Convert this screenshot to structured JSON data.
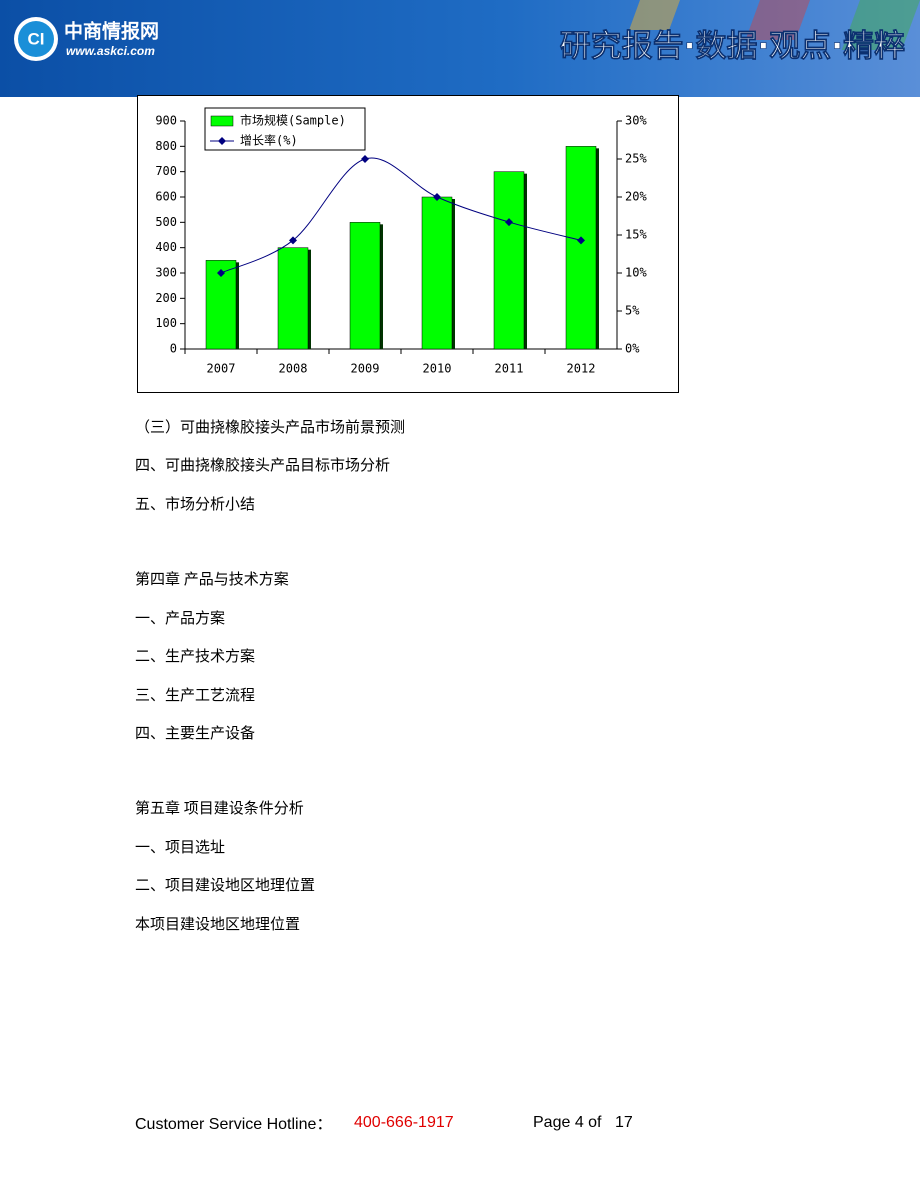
{
  "header": {
    "site_name": "中商情报网",
    "site_url": "www.askci.com",
    "slogan": "研究报告·数据·观点·精粹",
    "logo": "CI"
  },
  "chart_data": {
    "type": "bar",
    "categories": [
      "2007",
      "2008",
      "2009",
      "2010",
      "2011",
      "2012"
    ],
    "series": [
      {
        "name": "市场规模(Sample)",
        "color": "#00ff00",
        "type": "bar",
        "values": [
          350,
          400,
          500,
          600,
          700,
          800
        ]
      },
      {
        "name": "增长率(%)",
        "color": "#000080",
        "type": "line",
        "axis": "y2",
        "values": [
          10,
          14.3,
          25,
          20,
          16.7,
          14.3
        ]
      }
    ],
    "ylim": [
      0,
      900
    ],
    "yticks": [
      0,
      100,
      200,
      300,
      400,
      500,
      600,
      700,
      800,
      900
    ],
    "y2lim": [
      0,
      30
    ],
    "y2ticks": [
      {
        "value": 0,
        "label": "0%"
      },
      {
        "value": 5,
        "label": "5%"
      },
      {
        "value": 10,
        "label": "10%"
      },
      {
        "value": 15,
        "label": "15%"
      },
      {
        "value": 20,
        "label": "20%"
      },
      {
        "value": 25,
        "label": "25%"
      },
      {
        "value": 30,
        "label": "30%"
      }
    ],
    "grid": false,
    "legend": "top-left"
  },
  "body": [
    "（三）可曲挠橡胶接头产品市场前景预测",
    "四、可曲挠橡胶接头产品目标市场分析",
    "五、市场分析小结",
    "第四章 产品与技术方案",
    "一、产品方案",
    "二、生产技术方案",
    "三、生产工艺流程",
    "四、主要生产设备",
    "第五章 项目建设条件分析",
    "一、项目选址",
    "二、项目建设地区地理位置",
    "本项目建设地区地理位置"
  ],
  "footer": {
    "hotline_label": "Customer Service Hotline：",
    "hotline": "400-666-1917",
    "page_label": "Page 4 of",
    "total_pages": "17"
  }
}
